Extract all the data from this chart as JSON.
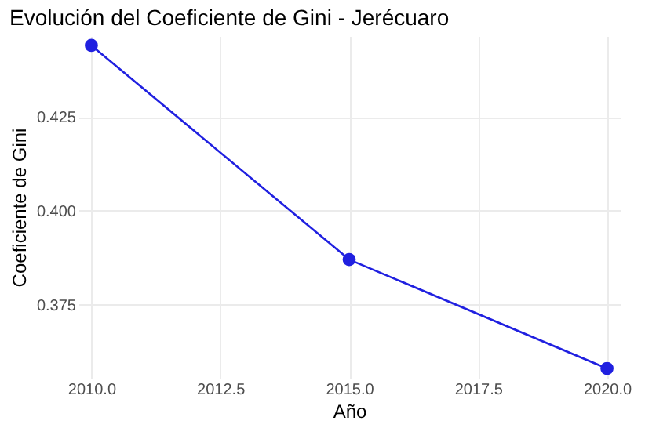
{
  "chart_data": {
    "type": "line",
    "title": "Evolución del Coeficiente de Gini - Jerécuaro",
    "xlabel": "Año",
    "ylabel": "Coeficiente de Gini",
    "x": [
      2010,
      2015,
      2020
    ],
    "series": [
      {
        "color": "#2020e0",
        "values": [
          0.444,
          0.387,
          0.358
        ]
      }
    ],
    "xlim": [
      2009.75,
      2020.25
    ],
    "xticks": [
      {
        "value": 2010,
        "label": "2010.0"
      },
      {
        "value": 2012.5,
        "label": "2012.5"
      },
      {
        "value": 2015,
        "label": "2015.0"
      },
      {
        "value": 2017.5,
        "label": "2017.5"
      },
      {
        "value": 2020,
        "label": "2020.0"
      }
    ],
    "ylim": [
      0.3555,
      0.4465
    ],
    "yticks": [
      0.375,
      {
        "value": 0.4,
        "label": "0.400"
      },
      0.425
    ],
    "grid": true,
    "marker": "circle",
    "line_style": "solid"
  }
}
